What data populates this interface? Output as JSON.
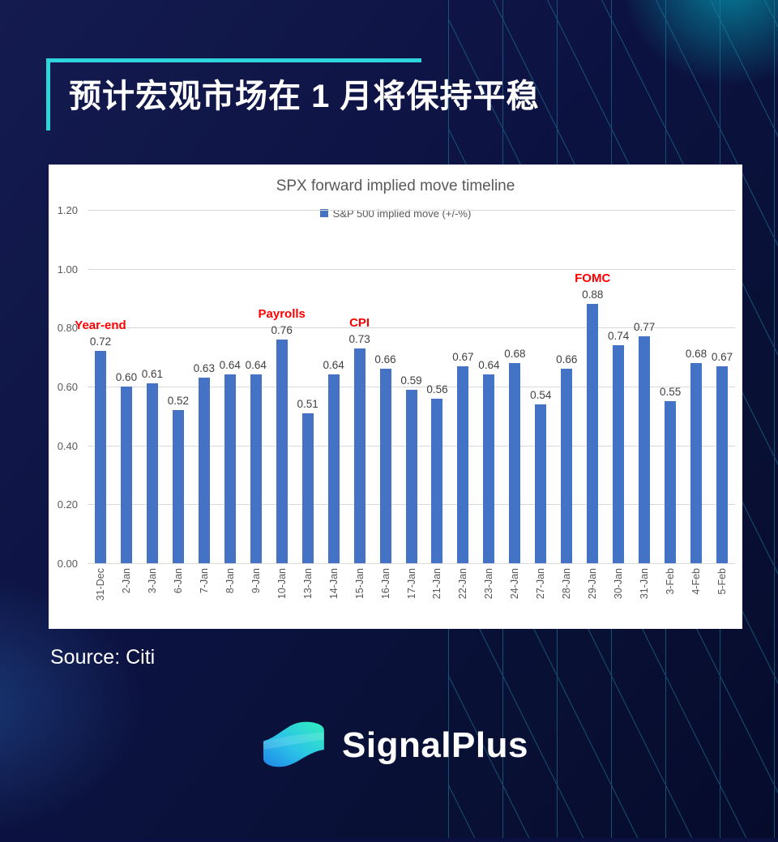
{
  "page": {
    "title": "预计宏观市场在 1 月将保持平稳",
    "source_label": "Source: Citi",
    "brand": "SignalPlus"
  },
  "colors": {
    "accent_teal": "#2FD5DC",
    "background_navy": "#0A1040",
    "pattern_line_teal": "#1F86A8",
    "bar_blue": "#4472C4",
    "annotation_red": "#FF0000",
    "chart_text_gray": "#595959",
    "value_label_gray": "#404040",
    "gridline_gray": "#D9D9D9",
    "logo_gradient_start": "#1E86E8",
    "logo_gradient_mid": "#2BC3E8",
    "logo_gradient_end": "#31F0BE"
  },
  "icons": [
    {
      "name": "signalplus-wave-logo-icon",
      "description": "teal-to-blue gradient S-wave ribbon"
    }
  ],
  "chart_data": {
    "type": "bar",
    "title": "SPX forward implied move timeline",
    "legend": [
      {
        "label": "S&P 500 implied move (+/-%)",
        "color": "#4472C4"
      }
    ],
    "legend_position": "top",
    "grid": true,
    "xlabel": "",
    "ylabel": "",
    "ylim": [
      0,
      1.2
    ],
    "ytick_labels": [
      "1.20",
      "1.00",
      "0.80",
      "0.60",
      "0.40",
      "0.20",
      "0.00"
    ],
    "categories": [
      "31-Dec",
      "2-Jan",
      "3-Jan",
      "6-Jan",
      "7-Jan",
      "8-Jan",
      "9-Jan",
      "10-Jan",
      "13-Jan",
      "14-Jan",
      "15-Jan",
      "16-Jan",
      "17-Jan",
      "21-Jan",
      "22-Jan",
      "23-Jan",
      "24-Jan",
      "27-Jan",
      "28-Jan",
      "29-Jan",
      "30-Jan",
      "31-Jan",
      "3-Feb",
      "4-Feb",
      "5-Feb"
    ],
    "values": [
      0.72,
      0.6,
      0.61,
      0.52,
      0.63,
      0.64,
      0.64,
      0.76,
      0.51,
      0.64,
      0.73,
      0.66,
      0.59,
      0.56,
      0.67,
      0.64,
      0.68,
      0.54,
      0.66,
      0.88,
      0.74,
      0.77,
      0.55,
      0.68,
      0.67
    ],
    "annotations": [
      {
        "label": "Year-end",
        "bar_index": 0
      },
      {
        "label": "Payrolls",
        "bar_index": 7
      },
      {
        "label": "CPI",
        "bar_index": 10
      },
      {
        "label": "FOMC",
        "bar_index": 19
      }
    ]
  }
}
